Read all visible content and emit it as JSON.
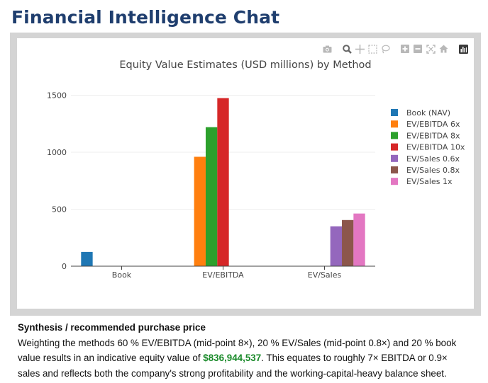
{
  "app": {
    "title": "Financial Intelligence Chat"
  },
  "modebar": {
    "icons": [
      "camera-icon",
      "zoom-icon",
      "pan-icon",
      "box-select-icon",
      "lasso-icon",
      "zoom-in-icon",
      "zoom-out-icon",
      "autoscale-icon",
      "home-icon",
      "plotly-logo-icon"
    ]
  },
  "chart_data": {
    "type": "bar",
    "title": "Equity Value Estimates (USD millions) by Method",
    "xlabel": "",
    "ylabel": "",
    "categories": [
      "Book",
      "EV/EBITDA",
      "EV/Sales"
    ],
    "ylim": [
      0,
      1640
    ],
    "yticks": [
      0,
      500,
      1000,
      1500
    ],
    "ytick_labels": [
      "0",
      "500",
      "1000",
      "1500"
    ],
    "grid": true,
    "legend_position": "top-right",
    "series": [
      {
        "name": "Book (NAV)",
        "color": "#1f77b4",
        "values": [
          125,
          null,
          null
        ]
      },
      {
        "name": "EV/EBITDA 6x",
        "color": "#ff7f0e",
        "values": [
          null,
          960,
          null
        ]
      },
      {
        "name": "EV/EBITDA 8x",
        "color": "#2ca02c",
        "values": [
          null,
          1220,
          null
        ]
      },
      {
        "name": "EV/EBITDA 10x",
        "color": "#d62728",
        "values": [
          null,
          1475,
          null
        ]
      },
      {
        "name": "EV/Sales 0.6x",
        "color": "#9467bd",
        "values": [
          null,
          null,
          350
        ]
      },
      {
        "name": "EV/Sales 0.8x",
        "color": "#8c564b",
        "values": [
          null,
          null,
          405
        ]
      },
      {
        "name": "EV/Sales 1x",
        "color": "#e377c2",
        "values": [
          null,
          null,
          462
        ]
      }
    ]
  },
  "synthesis": {
    "title": "Synthesis / recommended purchase price",
    "text_before": "Weighting the methods 60 % EV/EBITDA (mid-point 8×), 20 % EV/Sales (mid-point 0.8×) and 20 % book value results in an indicative equity value of ",
    "highlight": "$836,944,537",
    "text_after": ". This equates to roughly 7× EBITDA or 0.9× sales and reflects both the company's strong profitability and the working-capital-heavy balance sheet."
  }
}
